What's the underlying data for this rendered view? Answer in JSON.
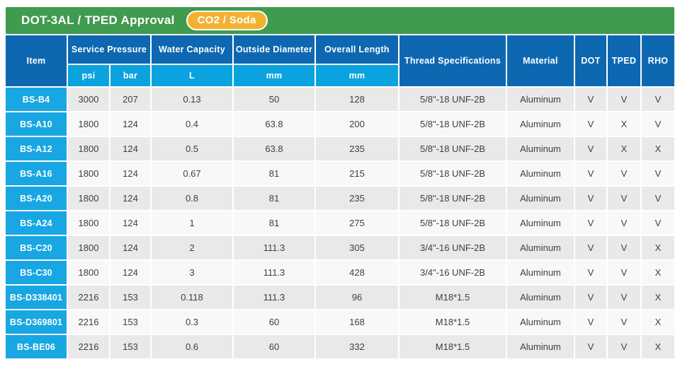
{
  "title_bar": {
    "title": "DOT-3AL / TPED Approval",
    "badge": "CO2 / Soda"
  },
  "colors": {
    "title_green": "#3F9B4E",
    "badge_yellow": "#F2B231",
    "header_blue": "#0D68B1",
    "subheader_blue": "#0AA3DF",
    "item_blue": "#18A7E2",
    "row_gray": "#E9E9E9",
    "row_light": "#F8F8F8",
    "text_dark": "#3F3F3F"
  },
  "table": {
    "headers": {
      "item": "Item",
      "service_pressure": "Service Pressure",
      "water_capacity": "Water Capacity",
      "outside_diameter": "Outside Diameter",
      "overall_length": "Overall Length",
      "thread_specifications": "Thread Specifications",
      "material": "Material",
      "dot": "DOT",
      "tped": "TPED",
      "rho": "RHO",
      "units": {
        "psi": "psi",
        "bar": "bar",
        "liters": "L",
        "od_mm": "mm",
        "ol_mm": "mm"
      }
    },
    "rows": [
      {
        "item": "BS-B4",
        "psi": "3000",
        "bar": "207",
        "water_capacity_l": "0.13",
        "outside_diameter_mm": "50",
        "overall_length_mm": "128",
        "thread": "5/8\"-18 UNF-2B",
        "material": "Aluminum",
        "dot": "V",
        "tped": "V",
        "rho": "V"
      },
      {
        "item": "BS-A10",
        "psi": "1800",
        "bar": "124",
        "water_capacity_l": "0.4",
        "outside_diameter_mm": "63.8",
        "overall_length_mm": "200",
        "thread": "5/8\"-18 UNF-2B",
        "material": "Aluminum",
        "dot": "V",
        "tped": "X",
        "rho": "V"
      },
      {
        "item": "BS-A12",
        "psi": "1800",
        "bar": "124",
        "water_capacity_l": "0.5",
        "outside_diameter_mm": "63.8",
        "overall_length_mm": "235",
        "thread": "5/8\"-18 UNF-2B",
        "material": "Aluminum",
        "dot": "V",
        "tped": "X",
        "rho": "X"
      },
      {
        "item": "BS-A16",
        "psi": "1800",
        "bar": "124",
        "water_capacity_l": "0.67",
        "outside_diameter_mm": "81",
        "overall_length_mm": "215",
        "thread": "5/8\"-18 UNF-2B",
        "material": "Aluminum",
        "dot": "V",
        "tped": "V",
        "rho": "V"
      },
      {
        "item": "BS-A20",
        "psi": "1800",
        "bar": "124",
        "water_capacity_l": "0.8",
        "outside_diameter_mm": "81",
        "overall_length_mm": "235",
        "thread": "5/8\"-18 UNF-2B",
        "material": "Aluminum",
        "dot": "V",
        "tped": "V",
        "rho": "V"
      },
      {
        "item": "BS-A24",
        "psi": "1800",
        "bar": "124",
        "water_capacity_l": "1",
        "outside_diameter_mm": "81",
        "overall_length_mm": "275",
        "thread": "5/8\"-18 UNF-2B",
        "material": "Aluminum",
        "dot": "V",
        "tped": "V",
        "rho": "V"
      },
      {
        "item": "BS-C20",
        "psi": "1800",
        "bar": "124",
        "water_capacity_l": "2",
        "outside_diameter_mm": "111.3",
        "overall_length_mm": "305",
        "thread": "3/4\"-16 UNF-2B",
        "material": "Aluminum",
        "dot": "V",
        "tped": "V",
        "rho": "X"
      },
      {
        "item": "BS-C30",
        "psi": "1800",
        "bar": "124",
        "water_capacity_l": "3",
        "outside_diameter_mm": "111.3",
        "overall_length_mm": "428",
        "thread": "3/4\"-16 UNF-2B",
        "material": "Aluminum",
        "dot": "V",
        "tped": "V",
        "rho": "X"
      },
      {
        "item": "BS-D338401",
        "psi": "2216",
        "bar": "153",
        "water_capacity_l": "0.118",
        "outside_diameter_mm": "111.3",
        "overall_length_mm": "96",
        "thread": "M18*1.5",
        "material": "Aluminum",
        "dot": "V",
        "tped": "V",
        "rho": "X"
      },
      {
        "item": "BS-D369801",
        "psi": "2216",
        "bar": "153",
        "water_capacity_l": "0.3",
        "outside_diameter_mm": "60",
        "overall_length_mm": "168",
        "thread": "M18*1.5",
        "material": "Aluminum",
        "dot": "V",
        "tped": "V",
        "rho": "X"
      },
      {
        "item": "BS-BE06",
        "psi": "2216",
        "bar": "153",
        "water_capacity_l": "0.6",
        "outside_diameter_mm": "60",
        "overall_length_mm": "332",
        "thread": "M18*1.5",
        "material": "Aluminum",
        "dot": "V",
        "tped": "V",
        "rho": "X"
      }
    ]
  }
}
